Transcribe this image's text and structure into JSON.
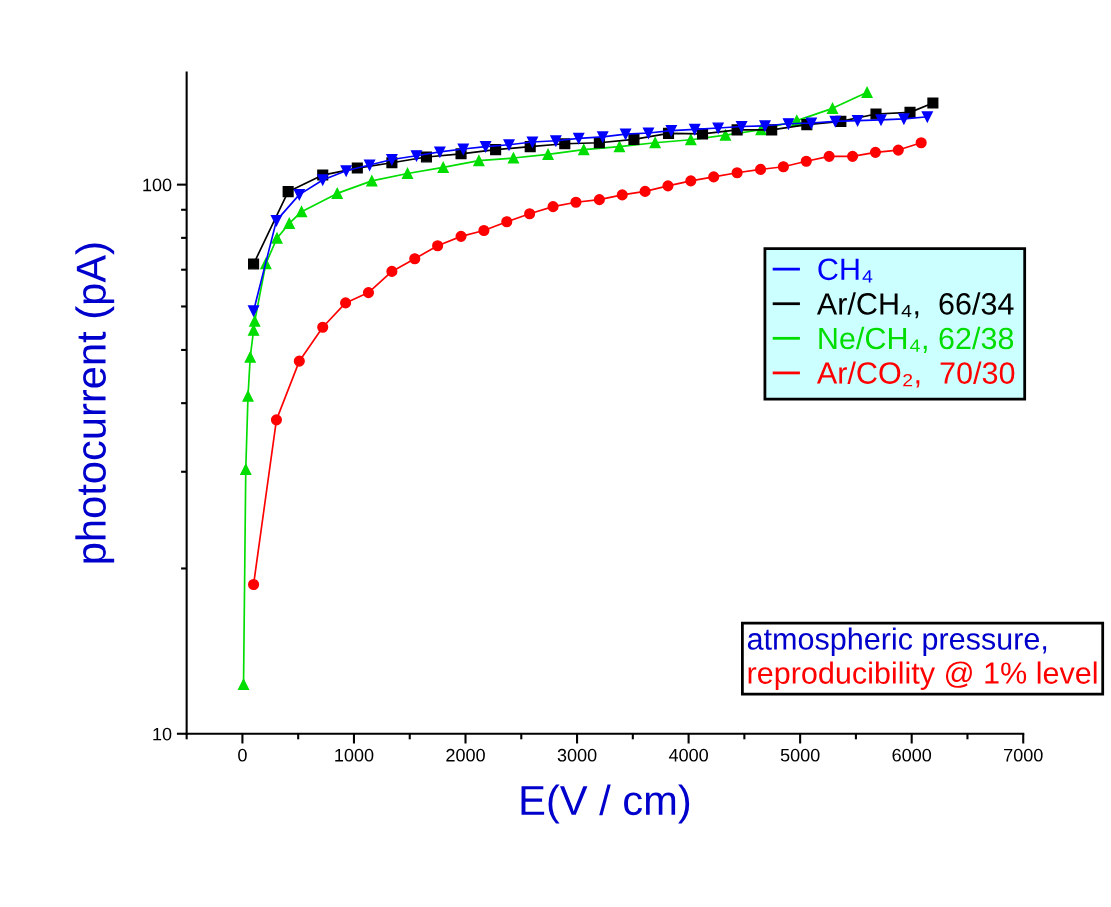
{
  "chart_data": {
    "type": "line",
    "xlabel": "E(V / cm)",
    "ylabel": "photocurrent (pA)",
    "log": "y",
    "xlim": [
      -500,
      7000
    ],
    "ylim": [
      10,
      160
    ],
    "xticks": [
      {
        "value": -500,
        "label": null
      },
      0,
      {
        "value": 500,
        "label": null
      },
      1000,
      {
        "value": 1500,
        "label": null
      },
      2000,
      {
        "value": 2500,
        "label": null
      },
      3000,
      {
        "value": 3500,
        "label": null
      },
      4000,
      {
        "value": 4500,
        "label": null
      },
      5000,
      {
        "value": 5500,
        "label": null
      },
      6000,
      {
        "value": 6500,
        "label": null
      },
      7000
    ],
    "yticks": [
      10,
      {
        "value": 20,
        "label": null
      },
      {
        "value": 30,
        "label": null
      },
      {
        "value": 40,
        "label": null
      },
      {
        "value": 50,
        "label": null
      },
      {
        "value": 60,
        "label": null
      },
      {
        "value": 70,
        "label": null
      },
      {
        "value": 80,
        "label": null
      },
      {
        "value": 90,
        "label": null
      },
      100
    ],
    "grid": false,
    "legend": "right",
    "line_style": "solid",
    "series": [
      {
        "name": "CH₄",
        "color": "#0000ff",
        "marker": "triangle_down",
        "x": [
          100,
          305,
          510,
          720,
          930,
          1140,
          1340,
          1560,
          1770,
          1980,
          2180,
          2390,
          2600,
          2810,
          3015,
          3230,
          3435,
          3640,
          3845,
          4055,
          4265,
          4475,
          4685,
          4895,
          5100,
          5315,
          5515,
          5725,
          5930,
          6140
        ],
        "values": [
          58.9,
          86.0,
          95.9,
          102.0,
          106.0,
          108.6,
          111.1,
          112.9,
          114.7,
          116.1,
          117.3,
          118.2,
          119.6,
          120.2,
          121.4,
          122.2,
          123.6,
          124.2,
          125.4,
          126.1,
          126.8,
          127.6,
          128.0,
          129.1,
          129.5,
          130.4,
          130.8,
          131.2,
          131.8,
          132.9
        ]
      },
      {
        "name": "Ar/CH₄,  66/34",
        "color": "#000000",
        "marker": "square",
        "x": [
          100,
          410,
          720,
          1030,
          1340,
          1650,
          1960,
          2270,
          2580,
          2890,
          3200,
          3510,
          3820,
          4125,
          4435,
          4745,
          5060,
          5365,
          5680,
          5985,
          6190
        ],
        "values": [
          71.7,
          97.1,
          104.1,
          107.2,
          109.6,
          112.3,
          113.8,
          115.8,
          117.3,
          118.7,
          119.2,
          120.9,
          124.0,
          123.7,
          125.8,
          125.8,
          128.6,
          130.4,
          134.5,
          135.4,
          140.8
        ]
      },
      {
        "name": "Ne/CH₄, 62/38",
        "color": "#00dd00",
        "marker": "triangle",
        "x": [
          10,
          30,
          50,
          70,
          100,
          110,
          210,
          310,
          420,
          530,
          850,
          1160,
          1480,
          1800,
          2120,
          2430,
          2740,
          3060,
          3380,
          3700,
          4020,
          4330,
          4650,
          4970,
          5290,
          5600
        ],
        "values": [
          12.3,
          30.3,
          41.2,
          48.5,
          54.3,
          56.4,
          71.8,
          79.9,
          85.0,
          89.3,
          96.4,
          101.6,
          104.8,
          107.5,
          110.6,
          111.8,
          113.5,
          115.8,
          117.3,
          119.2,
          120.7,
          123.1,
          125.9,
          130.8,
          137.7,
          147.2
        ]
      },
      {
        "name": "Ar/CO₂,  70/30",
        "color": "#ff0000",
        "marker": "circle",
        "x": [
          100,
          305,
          510,
          720,
          925,
          1130,
          1340,
          1545,
          1750,
          1960,
          2165,
          2370,
          2575,
          2785,
          2990,
          3200,
          3405,
          3610,
          3815,
          4020,
          4225,
          4435,
          4645,
          4850,
          5055,
          5260,
          5470,
          5675,
          5880,
          6085
        ],
        "values": [
          18.7,
          37.3,
          47.7,
          55.0,
          60.9,
          63.6,
          69.5,
          73.3,
          77.4,
          80.5,
          82.5,
          85.6,
          88.5,
          91.2,
          92.9,
          93.9,
          95.8,
          97.2,
          99.5,
          101.6,
          103.3,
          105.1,
          106.6,
          107.8,
          110.3,
          112.6,
          112.6,
          114.5,
          115.6,
          119.2
        ]
      }
    ],
    "annotations": [
      "atmospheric pressure,",
      "reproducibility @ 1% level"
    ]
  }
}
